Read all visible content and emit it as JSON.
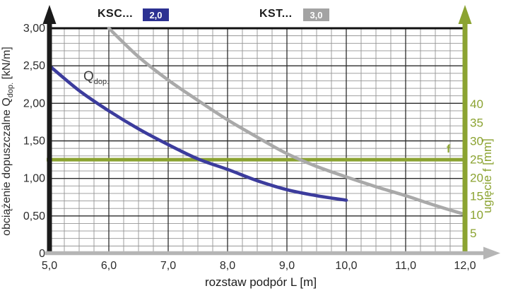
{
  "legend": {
    "series1_label": "KSC...",
    "series1_badge": "2,0",
    "series2_label": "KST...",
    "series2_badge": "3,0"
  },
  "labels": {
    "y_title_main": "obciążenie dopuszczalne Q",
    "y_title_sub": "dop.",
    "y_title_unit": " [kN/m]",
    "x_title": "rozstaw podpór L [m]",
    "right_title": "ugięcie f [mm]",
    "curve_label_main": "Q",
    "curve_label_sub": "dop.",
    "f_line_label": "f"
  },
  "colors": {
    "series1": "#3c3c9d",
    "series1_badge_bg": "#2c3192",
    "series2": "#a9a9a9",
    "series2_badge_bg": "#a3a3a3",
    "green_axis": "#8ba331",
    "grid_minor": "#949494",
    "grid_major": "#2d2d2d",
    "grid_top": "#101010",
    "left_axis": "#1a1a1a",
    "bottom_axis": "#b5b5b5",
    "tick_text": "#2b2b2b"
  },
  "chart_data": {
    "type": "line",
    "title": "",
    "xlabel": "rozstaw podpór L [m]",
    "ylabel_left": "obciążenie dopuszczalne Qdop. [kN/m]",
    "ylabel_right": "ugięcie f [mm]",
    "xlim": [
      5.0,
      12.0
    ],
    "ylim_left": [
      0,
      3.0
    ],
    "ylim_right_mm": [
      0,
      45
    ],
    "grid": {
      "on": true,
      "x_minor_step": 0.25,
      "y_minor_step": 0.1,
      "x_major_step": 1.0,
      "y_major_step": 0.5
    },
    "legend_position": "top",
    "x_ticks": {
      "values": [
        5.0,
        6.0,
        7.0,
        8.0,
        9.0,
        10.0,
        11.0,
        12.0
      ],
      "labels": [
        "5,0",
        "6,0",
        "7,0",
        "8,0",
        "9,0",
        "10,0",
        "11,0",
        "12,0"
      ]
    },
    "y_ticks_left": {
      "values": [
        3.0,
        2.5,
        2.0,
        1.5,
        1.0,
        0.5,
        0
      ],
      "labels": [
        "3,00",
        "2,50",
        "2,00",
        "1,50",
        "1,00",
        "0,50",
        "0"
      ]
    },
    "y_ticks_right_mm": {
      "values": [
        40,
        35,
        30,
        25,
        20,
        15,
        10,
        5
      ],
      "labels": [
        "40",
        "35",
        "30",
        "25",
        "20",
        "15",
        "10",
        "5"
      ]
    },
    "series": [
      {
        "name": "KSC... 2,0",
        "color": "#3c3c9d",
        "points": [
          [
            5.0,
            2.5
          ],
          [
            5.5,
            2.17
          ],
          [
            6.0,
            1.9
          ],
          [
            6.5,
            1.66
          ],
          [
            7.0,
            1.45
          ],
          [
            7.5,
            1.26
          ],
          [
            8.0,
            1.12
          ],
          [
            8.5,
            0.97
          ],
          [
            9.0,
            0.85
          ],
          [
            9.5,
            0.77
          ],
          [
            10.0,
            0.71
          ]
        ]
      },
      {
        "name": "KST... 3,0",
        "color": "#a9a9a9",
        "points": [
          [
            6.0,
            3.0
          ],
          [
            6.5,
            2.62
          ],
          [
            7.0,
            2.31
          ],
          [
            7.5,
            2.04
          ],
          [
            8.0,
            1.78
          ],
          [
            8.5,
            1.55
          ],
          [
            9.0,
            1.33
          ],
          [
            9.5,
            1.16
          ],
          [
            10.0,
            1.02
          ],
          [
            10.5,
            0.89
          ],
          [
            11.0,
            0.77
          ],
          [
            11.5,
            0.64
          ],
          [
            12.0,
            0.52
          ]
        ]
      }
    ],
    "reference_line": {
      "label": "f",
      "value_left_kn_m": 1.25,
      "value_right_mm": 25,
      "color": "#8ba331"
    }
  }
}
